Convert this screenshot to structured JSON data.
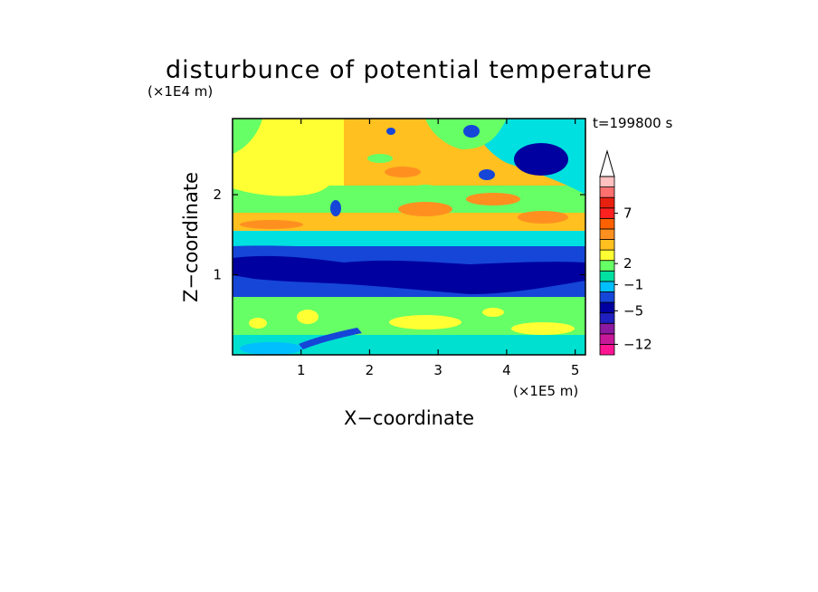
{
  "chart_data": {
    "type": "heatmap",
    "title": "disturbunce of potential temperature",
    "xlabel": "X−coordinate",
    "ylabel": "Z−coordinate",
    "x_unit": "(×1E5 m)",
    "y_unit": "(×1E4 m)",
    "time_label": "t=199800 s",
    "xlim": [
      0,
      5.15
    ],
    "ylim": [
      0,
      2.95
    ],
    "x_ticks": [
      1,
      2,
      3,
      4,
      5
    ],
    "y_ticks": [
      1,
      2
    ],
    "x_tick_labels": [
      "1",
      "2",
      "3",
      "4",
      "5"
    ],
    "y_tick_labels": [
      "1",
      "2"
    ],
    "colorbar": {
      "tick_labels": [
        "7",
        "2",
        "−1",
        "−5",
        "−12"
      ],
      "colors": [
        "#ff1493",
        "#c8189a",
        "#8b1aa0",
        "#2020c0",
        "#0000a0",
        "#1546d8",
        "#00bfff",
        "#00e0a0",
        "#66ff66",
        "#ffff33",
        "#ffc020",
        "#ff9020",
        "#ff6000",
        "#ff2020",
        "#e82010",
        "#ff7070",
        "#ffc0c0",
        "#ffffff"
      ]
    },
    "bands": [
      {
        "z_range": [
          0.0,
          0.15
        ],
        "color": "#00e0d0",
        "description": "near-surface cyan layer with patches"
      },
      {
        "z_range": [
          0.15,
          0.75
        ],
        "color": "#66ff66",
        "description": "green with yellow patches"
      },
      {
        "z_range": [
          0.75,
          1.35
        ],
        "color": "#1546d8",
        "description": "blue/dark blue negative band"
      },
      {
        "z_range": [
          1.35,
          1.55
        ],
        "color": "#00e0e0",
        "description": "cyan transition"
      },
      {
        "z_range": [
          1.55,
          2.95
        ],
        "color": "#ff9020",
        "description": "orange/yellow wave pattern with blue cells aloft"
      }
    ]
  }
}
